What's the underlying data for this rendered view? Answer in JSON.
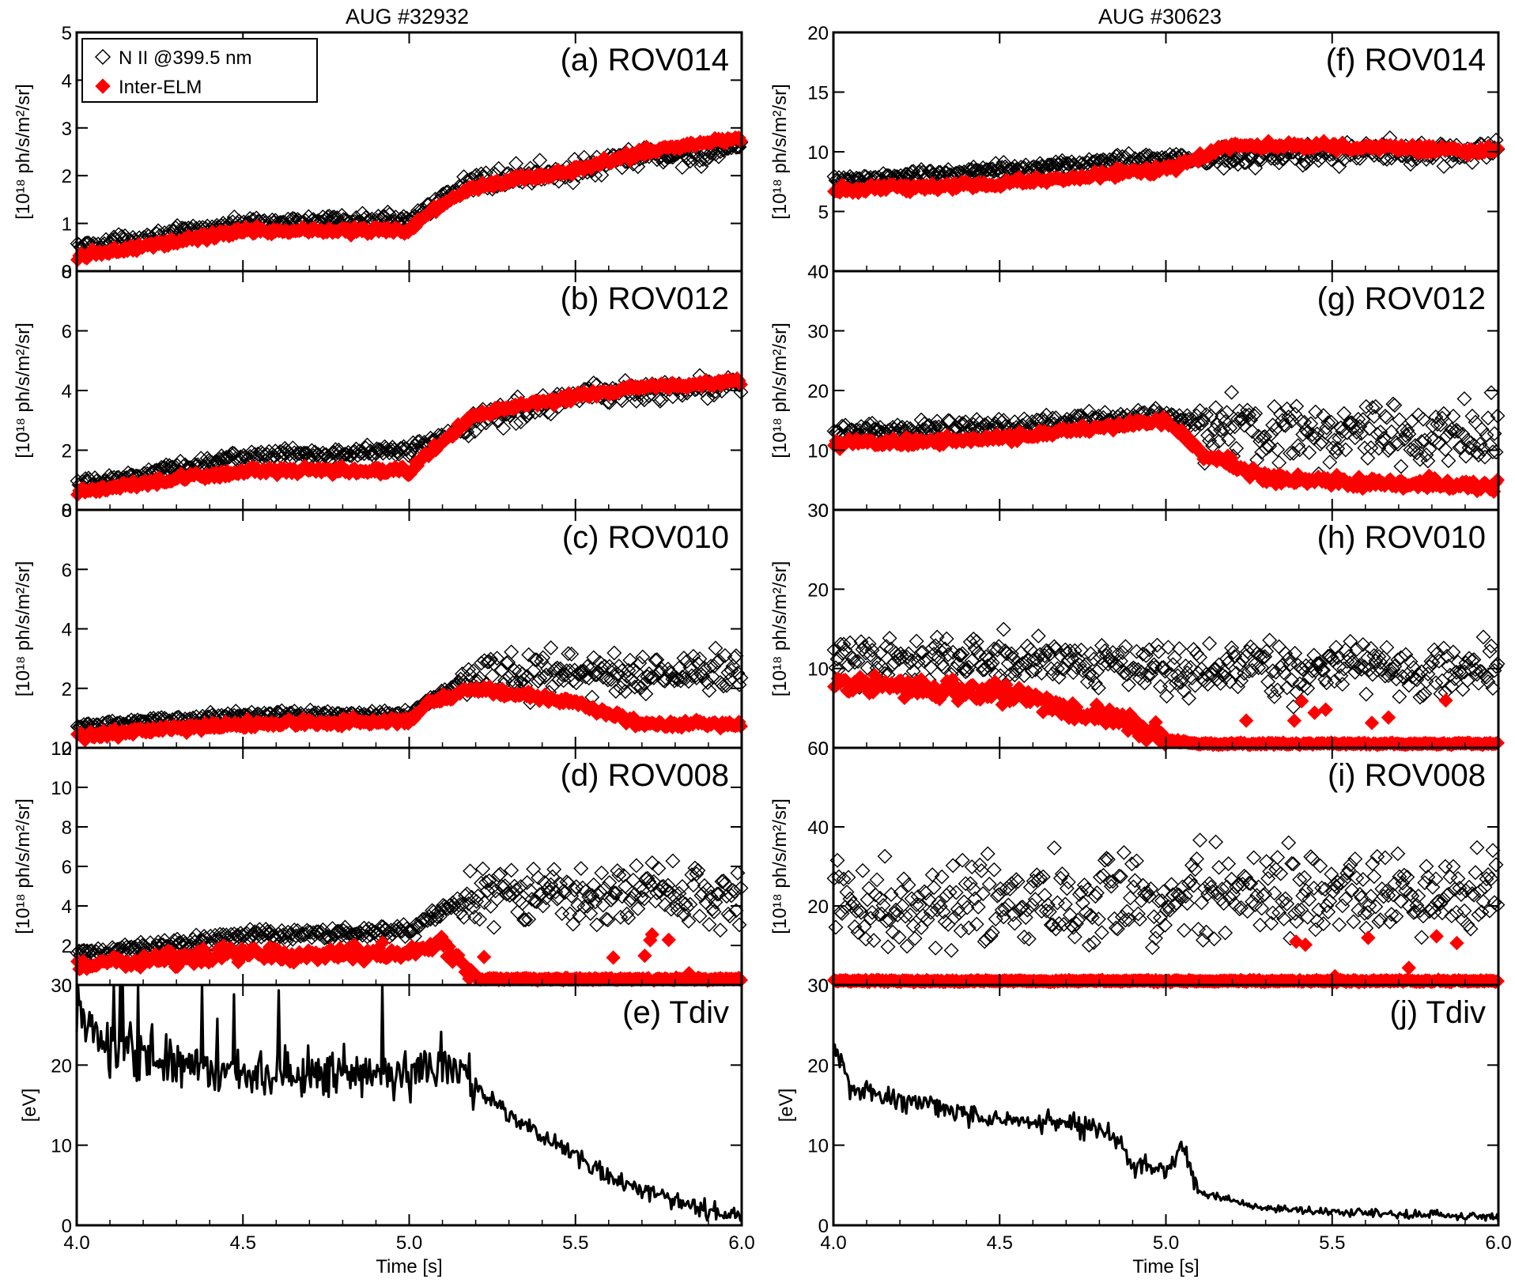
{
  "columns": [
    {
      "title": "AUG #32932"
    },
    {
      "title": "AUG #30623"
    }
  ],
  "legend": {
    "entries": [
      {
        "label": "N II @399.5 nm",
        "marker": "open-diamond",
        "color": "#000000"
      },
      {
        "label": "Inter-ELM",
        "marker": "filled-diamond",
        "color": "#ff0000"
      }
    ]
  },
  "colors": {
    "nii": "#000000",
    "inter_elm": "#ff0000",
    "tdiv": "#000000"
  },
  "axes": {
    "x_label": "Time [s]",
    "x_ticks": [
      "4.0",
      "4.5",
      "5.0",
      "5.5",
      "6.0"
    ],
    "xlim": [
      4.0,
      6.0
    ],
    "y_label_intensity": "[10¹⁸ ph/s/m²/sr]",
    "y_label_tdiv": "[eV]"
  },
  "chart_data": [
    {
      "id": "a",
      "type": "scatter",
      "label": "(a) ROV014",
      "xlim": [
        4.0,
        6.0
      ],
      "ylim": [
        0,
        5
      ],
      "y_ticks": [
        0,
        1,
        2,
        3,
        4,
        5
      ],
      "x": [
        4.0,
        4.5,
        5.0,
        5.05,
        5.2,
        5.5,
        5.7,
        6.0
      ],
      "series": [
        {
          "name": "N II @399.5 nm",
          "values": [
            0.5,
            1.0,
            1.1,
            1.3,
            1.9,
            2.1,
            2.4,
            2.5
          ]
        },
        {
          "name": "Inter-ELM",
          "values": [
            0.3,
            0.85,
            0.85,
            1.2,
            1.8,
            2.1,
            2.5,
            2.8
          ]
        }
      ]
    },
    {
      "id": "b",
      "type": "scatter",
      "label": "(b) ROV012",
      "xlim": [
        4.0,
        6.0
      ],
      "ylim": [
        0,
        8
      ],
      "y_ticks": [
        0,
        2,
        4,
        6,
        8
      ],
      "x": [
        4.0,
        4.5,
        5.0,
        5.05,
        5.2,
        5.5,
        5.7,
        6.0
      ],
      "series": [
        {
          "name": "N II @399.5 nm",
          "values": [
            0.8,
            1.8,
            2.0,
            2.2,
            3.0,
            3.8,
            4.0,
            4.2
          ]
        },
        {
          "name": "Inter-ELM",
          "values": [
            0.6,
            1.3,
            1.3,
            1.8,
            3.2,
            3.8,
            4.1,
            4.3
          ]
        }
      ]
    },
    {
      "id": "c",
      "type": "scatter",
      "label": "(c) ROV010",
      "xlim": [
        4.0,
        6.0
      ],
      "ylim": [
        0,
        8
      ],
      "y_ticks": [
        0,
        2,
        4,
        6,
        8
      ],
      "x": [
        4.0,
        4.5,
        5.0,
        5.05,
        5.2,
        5.5,
        5.7,
        6.0
      ],
      "series": [
        {
          "name": "N II @399.5 nm",
          "values": [
            0.7,
            1.1,
            1.1,
            1.5,
            2.5,
            2.5,
            2.5,
            2.5
          ]
        },
        {
          "name": "Inter-ELM",
          "values": [
            0.4,
            0.8,
            0.9,
            1.5,
            2.0,
            1.5,
            0.8,
            0.8
          ]
        }
      ]
    },
    {
      "id": "d",
      "type": "scatter",
      "label": "(d) ROV008",
      "xlim": [
        4.0,
        6.0
      ],
      "ylim": [
        0,
        12
      ],
      "y_ticks": [
        0,
        2,
        4,
        6,
        8,
        10,
        12
      ],
      "x": [
        4.0,
        4.5,
        5.0,
        5.1,
        5.2,
        5.5,
        6.0
      ],
      "series": [
        {
          "name": "N II @399.5 nm",
          "values": [
            1.5,
            2.5,
            2.7,
            3.8,
            4.5,
            4.5,
            4.5
          ]
        },
        {
          "name": "Inter-ELM",
          "values": [
            1.0,
            1.6,
            1.6,
            2.2,
            0.3,
            0.3,
            0.3
          ]
        }
      ]
    },
    {
      "id": "e",
      "type": "line",
      "label": "(e) Tdiv",
      "xlim": [
        4.0,
        6.0
      ],
      "ylim": [
        0,
        30
      ],
      "y_ticks": [
        0,
        10,
        20,
        30
      ],
      "x": [
        4.0,
        4.1,
        4.5,
        5.0,
        5.1,
        5.2,
        5.4,
        5.6,
        5.8,
        6.0
      ],
      "series": [
        {
          "name": "Tdiv",
          "values": [
            27,
            22,
            19,
            19,
            21,
            17,
            11,
            6,
            3,
            1
          ]
        }
      ]
    },
    {
      "id": "f",
      "type": "scatter",
      "label": "(f) ROV014",
      "xlim": [
        4.0,
        6.0
      ],
      "ylim": [
        0,
        20
      ],
      "y_ticks": [
        0,
        5,
        10,
        15,
        20
      ],
      "x": [
        4.0,
        4.5,
        5.0,
        5.2,
        5.5,
        6.0
      ],
      "series": [
        {
          "name": "N II @399.5 nm",
          "values": [
            7.5,
            8.5,
            9.5,
            9.5,
            10,
            10
          ]
        },
        {
          "name": "Inter-ELM",
          "values": [
            6.8,
            7.3,
            8.5,
            10.5,
            10.5,
            10
          ]
        }
      ]
    },
    {
      "id": "g",
      "type": "scatter",
      "label": "(g) ROV012",
      "xlim": [
        4.0,
        6.0
      ],
      "ylim": [
        0,
        40
      ],
      "y_ticks": [
        0,
        10,
        20,
        30,
        40
      ],
      "x": [
        4.0,
        4.5,
        5.0,
        5.1,
        5.3,
        6.0
      ],
      "series": [
        {
          "name": "N II @399.5 nm",
          "values": [
            13,
            14,
            16,
            14,
            13,
            12
          ]
        },
        {
          "name": "Inter-ELM",
          "values": [
            11,
            12,
            15,
            10,
            5,
            4
          ]
        }
      ]
    },
    {
      "id": "h",
      "type": "scatter",
      "label": "(h) ROV010",
      "xlim": [
        4.0,
        6.0
      ],
      "ylim": [
        0,
        30
      ],
      "y_ticks": [
        0,
        10,
        20,
        30
      ],
      "x": [
        4.0,
        4.5,
        4.9,
        5.0,
        5.1,
        6.0
      ],
      "series": [
        {
          "name": "N II @399.5 nm",
          "values": [
            11,
            11,
            11,
            10,
            10,
            10
          ]
        },
        {
          "name": "Inter-ELM",
          "values": [
            8,
            7,
            3,
            1,
            0.5,
            0.5
          ]
        }
      ]
    },
    {
      "id": "i",
      "type": "scatter",
      "label": "(i) ROV008",
      "xlim": [
        4.0,
        6.0
      ],
      "ylim": [
        0,
        60
      ],
      "y_ticks": [
        0,
        20,
        40,
        60
      ],
      "x": [
        4.0,
        5.0,
        6.0
      ],
      "series": [
        {
          "name": "N II @399.5 nm",
          "values": [
            20,
            22,
            24
          ]
        },
        {
          "name": "Inter-ELM",
          "values": [
            1,
            1,
            1
          ]
        }
      ]
    },
    {
      "id": "j",
      "type": "line",
      "label": "(j) Tdiv",
      "xlim": [
        4.0,
        6.0
      ],
      "ylim": [
        0,
        30
      ],
      "y_ticks": [
        0,
        10,
        20,
        30
      ],
      "x": [
        4.0,
        4.05,
        4.3,
        4.5,
        4.7,
        4.85,
        4.9,
        4.95,
        5.0,
        5.05,
        5.1,
        5.3,
        5.6,
        6.0
      ],
      "series": [
        {
          "name": "Tdiv",
          "values": [
            23,
            17,
            15,
            13,
            13,
            11,
            7,
            8,
            7,
            10,
            4,
            2,
            1.5,
            1
          ]
        }
      ]
    }
  ]
}
